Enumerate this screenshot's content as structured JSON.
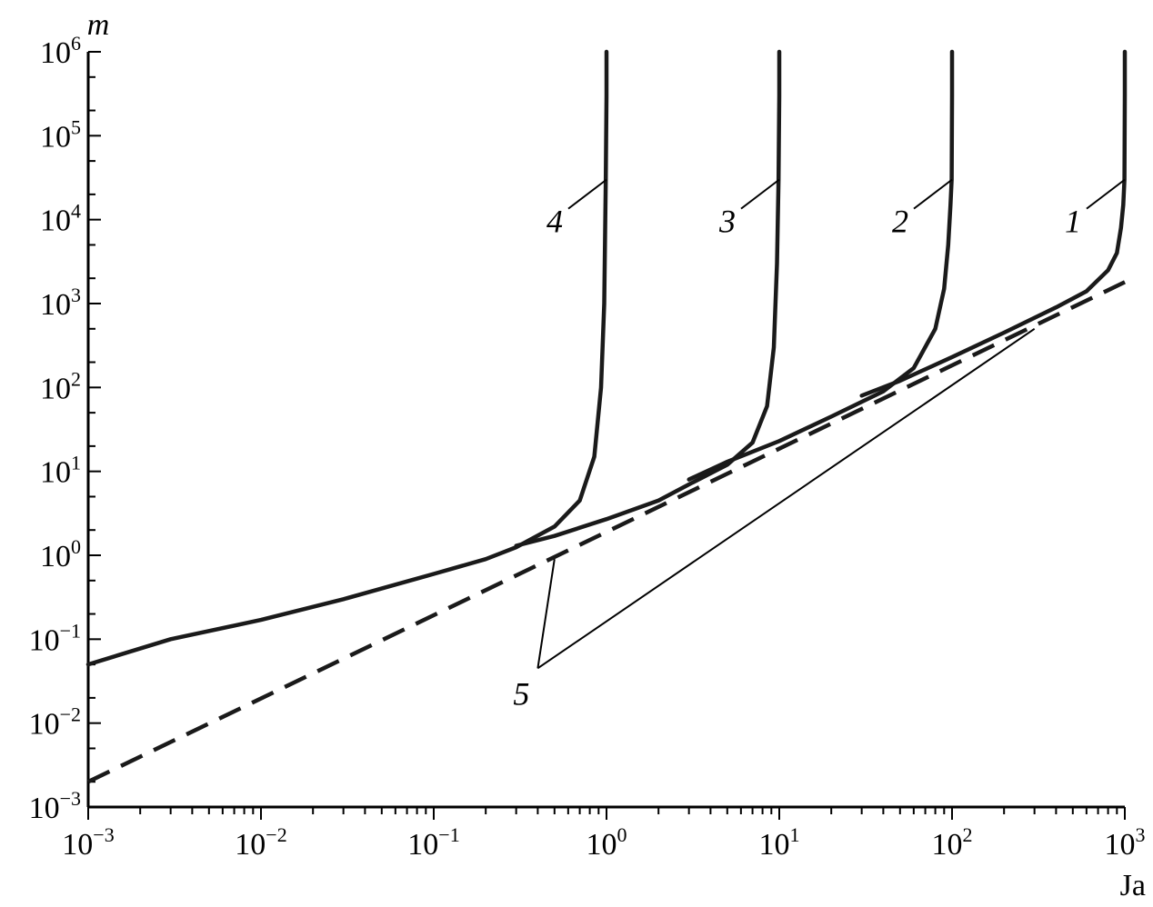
{
  "chart_data": {
    "type": "line",
    "title": "",
    "xlabel": "Ja",
    "ylabel": "m",
    "x_scale": "log",
    "y_scale": "log",
    "xlim": [
      0.001,
      1000
    ],
    "ylim": [
      0.001,
      1000000
    ],
    "grid": false,
    "legend": "none",
    "x_ticks": [
      {
        "value": 0.001,
        "base": "10",
        "exp": "−3"
      },
      {
        "value": 0.01,
        "base": "10",
        "exp": "−2"
      },
      {
        "value": 0.1,
        "base": "10",
        "exp": "−1"
      },
      {
        "value": 1,
        "base": "10",
        "exp": "0"
      },
      {
        "value": 10,
        "base": "10",
        "exp": "1"
      },
      {
        "value": 100,
        "base": "10",
        "exp": "2"
      },
      {
        "value": 1000,
        "base": "10",
        "exp": "3"
      }
    ],
    "y_ticks": [
      {
        "value": 0.001,
        "base": "10",
        "exp": "−3"
      },
      {
        "value": 0.01,
        "base": "10",
        "exp": "−2"
      },
      {
        "value": 0.1,
        "base": "10",
        "exp": "−1"
      },
      {
        "value": 1,
        "base": "10",
        "exp": "0"
      },
      {
        "value": 10,
        "base": "10",
        "exp": "1"
      },
      {
        "value": 100,
        "base": "10",
        "exp": "2"
      },
      {
        "value": 1000,
        "base": "10",
        "exp": "3"
      },
      {
        "value": 10000,
        "base": "10",
        "exp": "4"
      },
      {
        "value": 100000,
        "base": "10",
        "exp": "5"
      },
      {
        "value": 1000000,
        "base": "10",
        "exp": "6"
      }
    ],
    "series": [
      {
        "label": "4",
        "style": "solid",
        "x": [
          0.001,
          0.003,
          0.01,
          0.03,
          0.1,
          0.2,
          0.3,
          0.5,
          0.7,
          0.85,
          0.93,
          0.97,
          0.99,
          1.0,
          1.0
        ],
        "y": [
          0.05,
          0.1,
          0.17,
          0.3,
          0.6,
          0.9,
          1.25,
          2.2,
          4.5,
          15,
          100,
          1000,
          30000,
          300000,
          1000000
        ]
      },
      {
        "label": "3",
        "style": "solid",
        "x": [
          0.3,
          0.5,
          1,
          2,
          3,
          5,
          7,
          8.5,
          9.3,
          9.7,
          9.9,
          10,
          10
        ],
        "y": [
          1.3,
          1.7,
          2.7,
          4.5,
          7,
          12,
          22,
          60,
          300,
          3000,
          30000,
          300000,
          1000000
        ]
      },
      {
        "label": "2",
        "style": "solid",
        "x": [
          3,
          5,
          10,
          20,
          40,
          60,
          80,
          90,
          95,
          98,
          99.5,
          100,
          100
        ],
        "y": [
          8,
          13,
          23,
          45,
          90,
          170,
          500,
          1500,
          5000,
          15000,
          30000,
          300000,
          1000000
        ]
      },
      {
        "label": "1",
        "style": "solid",
        "x": [
          30,
          50,
          100,
          200,
          400,
          600,
          800,
          900,
          950,
          980,
          995,
          1000,
          1000
        ],
        "y": [
          80,
          120,
          230,
          450,
          900,
          1400,
          2500,
          4000,
          8000,
          15000,
          30000,
          300000,
          1000000
        ]
      },
      {
        "label": "5",
        "style": "dashed",
        "x": [
          0.001,
          1000
        ],
        "y": [
          0.002,
          1800
        ]
      }
    ],
    "annotations": [
      {
        "text": "4",
        "series": "4",
        "anchor": {
          "x": 1.0,
          "y": 30000
        }
      },
      {
        "text": "3",
        "series": "3",
        "anchor": {
          "x": 10,
          "y": 30000
        }
      },
      {
        "text": "2",
        "series": "2",
        "anchor": {
          "x": 100,
          "y": 30000
        }
      },
      {
        "text": "1",
        "series": "1",
        "anchor": {
          "x": 1000,
          "y": 30000
        }
      },
      {
        "text": "5",
        "series": "5",
        "anchors": [
          {
            "x": 0.5,
            "y": 0.9
          },
          {
            "x": 300,
            "y": 500
          }
        ]
      }
    ]
  },
  "colors": {
    "line": "#1a1a1a",
    "axis": "#000000",
    "background": "#ffffff"
  }
}
